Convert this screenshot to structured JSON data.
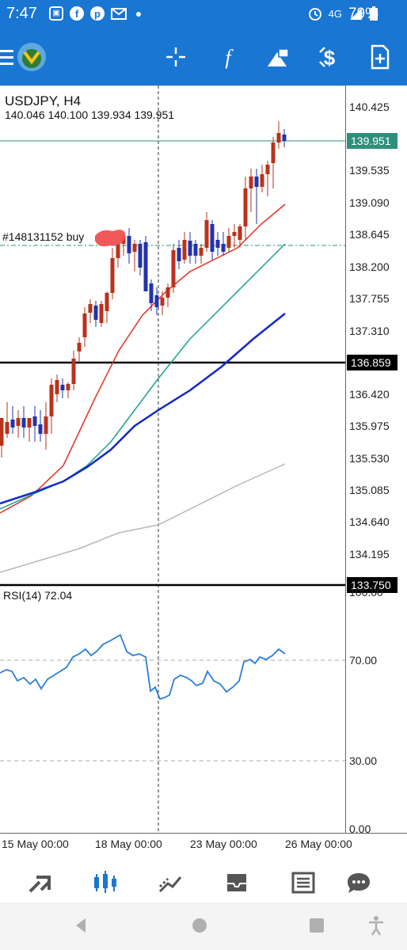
{
  "status_bar": {
    "time": "7:47",
    "network": "4G",
    "battery": "79%",
    "icons": [
      "sim-icon",
      "facebook-icon",
      "pinterest-icon",
      "gmail-icon",
      "dot-icon",
      "alarm-icon",
      "signal-icon",
      "battery-icon"
    ]
  },
  "toolbar": {
    "icons": [
      "menu-icon",
      "app-logo-icon",
      "crosshair-icon",
      "indicators-icon",
      "objects-icon",
      "trade-icon",
      "new-chart-icon"
    ]
  },
  "chart": {
    "symbol": "USDJPY, H4",
    "ohlc": "140.046 140.100 139.934 139.951",
    "order_label": "#148131152 buy",
    "current_price": "139.951",
    "hline_1": "136.859",
    "hline_2": "133.750",
    "price_ticks": [
      "140.425",
      "139.535",
      "139.090",
      "138.645",
      "138.200",
      "137.755",
      "137.310",
      "136.420",
      "135.975",
      "135.530",
      "135.085",
      "134.640",
      "134.195"
    ],
    "rsi_label": "RSI(14) 72.04",
    "rsi_ticks": [
      "100.00",
      "70.00",
      "30.00",
      "0.00"
    ],
    "x_ticks": [
      "15 May 00:00",
      "18 May 00:00",
      "23 May 00:00",
      "26 May 00:00"
    ],
    "colors": {
      "bull": "#b9321b",
      "bear": "#2233aa",
      "ma_fast": "#e53020",
      "ma_mid": "#19a38a",
      "ma_slow": "#1428c8",
      "ma_long": "#b8b8b8",
      "rsi": "#2a7fd6",
      "price_line": "#2f8f7d"
    }
  },
  "bottom_nav": [
    "quotes-icon",
    "chart-icon",
    "trade-icon",
    "history-icon",
    "news-icon",
    "messages-icon"
  ],
  "android_nav": [
    "back-icon",
    "home-icon",
    "recents-icon",
    "accessibility-icon"
  ]
}
